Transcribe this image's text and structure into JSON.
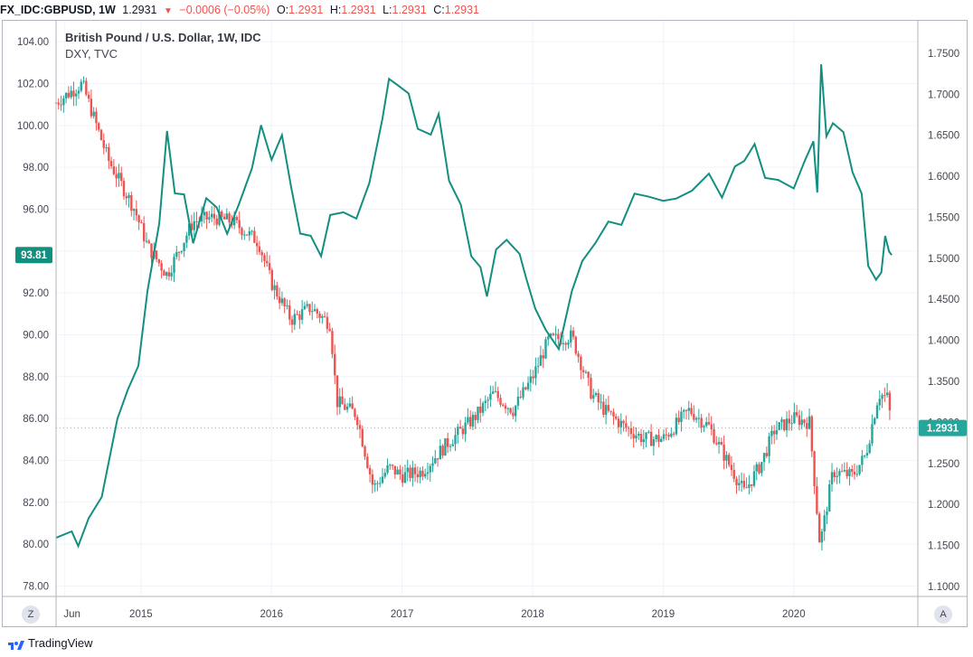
{
  "header": {
    "symbol": "FX_IDC:GBPUSD, 1W",
    "last": "1.2931",
    "change": "−0.0006 (−0.05%)",
    "open_label": "O:",
    "open": "1.2931",
    "high_label": "H:",
    "high": "1.2931",
    "low_label": "L:",
    "low": "1.2931",
    "close_label": "C:",
    "close": "1.2931"
  },
  "legend": {
    "main": "British Pound / U.S. Dollar, 1W, IDC",
    "compare": "DXY, TVC"
  },
  "footer": {
    "brand": "TradingView"
  },
  "controls": {
    "zoom_label": "Z",
    "auto_label": "A"
  },
  "colors": {
    "up": "#26a69a",
    "down": "#ef5350",
    "dxy": "#138f80",
    "grid": "#f0f3fa"
  },
  "chart_data": {
    "type": "candlestick + line",
    "x_tick_labels": [
      "Jun",
      "2015",
      "2016",
      "2017",
      "2018",
      "2019",
      "2020"
    ],
    "x_ticks_years": [
      2014.417,
      2015.0,
      2016.0,
      2017.0,
      2018.0,
      2019.0,
      2020.0
    ],
    "xlim": [
      2014.35,
      2020.95
    ],
    "left_axis": {
      "series": "DXY",
      "ticks": [
        "78.00",
        "80.00",
        "82.00",
        "84.00",
        "86.00",
        "88.00",
        "90.00",
        "92.00",
        "94.00",
        "96.00",
        "98.00",
        "100.00",
        "102.00",
        "104.00"
      ],
      "ylim": [
        77.5,
        105.0
      ],
      "last_label": "93.81",
      "last_value": 93.81
    },
    "right_axis": {
      "series": "GBPUSD",
      "ticks": [
        "1.1000",
        "1.1500",
        "1.2000",
        "1.2500",
        "1.3000",
        "1.3500",
        "1.4000",
        "1.4500",
        "1.5000",
        "1.5500",
        "1.6000",
        "1.6500",
        "1.7000",
        "1.7500"
      ],
      "ylim": [
        1.0878,
        1.7896
      ],
      "last_label": "1.2931",
      "last_value": 1.2931
    },
    "series": [
      {
        "name": "GBPUSD (1W candles, close anchors)",
        "axis": "right",
        "points": [
          [
            2014.35,
            1.69
          ],
          [
            2014.55,
            1.713
          ],
          [
            2014.75,
            1.62
          ],
          [
            2014.95,
            1.56
          ],
          [
            2015.05,
            1.515
          ],
          [
            2015.2,
            1.48
          ],
          [
            2015.4,
            1.545
          ],
          [
            2015.55,
            1.55
          ],
          [
            2015.7,
            1.545
          ],
          [
            2015.9,
            1.52
          ],
          [
            2016.0,
            1.47
          ],
          [
            2016.15,
            1.425
          ],
          [
            2016.3,
            1.44
          ],
          [
            2016.45,
            1.42
          ],
          [
            2016.5,
            1.325
          ],
          [
            2016.65,
            1.31
          ],
          [
            2016.78,
            1.22
          ],
          [
            2016.9,
            1.245
          ],
          [
            2017.0,
            1.235
          ],
          [
            2017.15,
            1.24
          ],
          [
            2017.35,
            1.275
          ],
          [
            2017.55,
            1.305
          ],
          [
            2017.7,
            1.335
          ],
          [
            2017.85,
            1.315
          ],
          [
            2018.0,
            1.355
          ],
          [
            2018.12,
            1.4
          ],
          [
            2018.3,
            1.405
          ],
          [
            2018.45,
            1.335
          ],
          [
            2018.55,
            1.315
          ],
          [
            2018.7,
            1.295
          ],
          [
            2018.85,
            1.28
          ],
          [
            2019.0,
            1.28
          ],
          [
            2019.2,
            1.315
          ],
          [
            2019.35,
            1.295
          ],
          [
            2019.5,
            1.25
          ],
          [
            2019.62,
            1.215
          ],
          [
            2019.75,
            1.25
          ],
          [
            2019.85,
            1.29
          ],
          [
            2020.0,
            1.305
          ],
          [
            2020.12,
            1.3
          ],
          [
            2020.2,
            1.15
          ],
          [
            2020.3,
            1.24
          ],
          [
            2020.45,
            1.235
          ],
          [
            2020.55,
            1.26
          ],
          [
            2020.65,
            1.335
          ],
          [
            2020.72,
            1.33
          ],
          [
            2020.75,
            1.2931
          ]
        ]
      },
      {
        "name": "DXY (line)",
        "axis": "left",
        "points": [
          [
            2014.35,
            80.3
          ],
          [
            2014.47,
            80.5
          ],
          [
            2014.52,
            80.1
          ],
          [
            2014.6,
            81.0
          ],
          [
            2014.7,
            82.5
          ],
          [
            2014.82,
            85.8
          ],
          [
            2014.9,
            87.5
          ],
          [
            2014.98,
            88.5
          ],
          [
            2015.05,
            92.0
          ],
          [
            2015.14,
            95.5
          ],
          [
            2015.2,
            99.5
          ],
          [
            2015.26,
            97.0
          ],
          [
            2015.33,
            96.5
          ],
          [
            2015.4,
            94.5
          ],
          [
            2015.5,
            96.5
          ],
          [
            2015.58,
            96.0
          ],
          [
            2015.66,
            95.0
          ],
          [
            2015.75,
            96.0
          ],
          [
            2015.85,
            98.2
          ],
          [
            2015.92,
            99.8
          ],
          [
            2016.0,
            98.5
          ],
          [
            2016.08,
            99.5
          ],
          [
            2016.15,
            97.0
          ],
          [
            2016.22,
            95.0
          ],
          [
            2016.3,
            94.5
          ],
          [
            2016.38,
            94.0
          ],
          [
            2016.45,
            95.5
          ],
          [
            2016.55,
            96.0
          ],
          [
            2016.65,
            95.5
          ],
          [
            2016.75,
            97.2
          ],
          [
            2016.85,
            100.5
          ],
          [
            2016.9,
            102.0
          ],
          [
            2016.96,
            102.2
          ],
          [
            2017.05,
            101.3
          ],
          [
            2017.12,
            100.0
          ],
          [
            2017.22,
            99.5
          ],
          [
            2017.28,
            100.5
          ],
          [
            2017.36,
            97.5
          ],
          [
            2017.45,
            96.0
          ],
          [
            2017.53,
            94.0
          ],
          [
            2017.6,
            93.0
          ],
          [
            2017.65,
            92.0
          ],
          [
            2017.72,
            94.0
          ],
          [
            2017.8,
            94.5
          ],
          [
            2017.9,
            94.0
          ],
          [
            2017.95,
            92.5
          ],
          [
            2018.02,
            91.5
          ],
          [
            2018.1,
            90.0
          ],
          [
            2018.2,
            89.5
          ],
          [
            2018.3,
            92.0
          ],
          [
            2018.38,
            93.5
          ],
          [
            2018.48,
            94.5
          ],
          [
            2018.58,
            95.2
          ],
          [
            2018.68,
            95.5
          ],
          [
            2018.78,
            96.5
          ],
          [
            2018.88,
            96.8
          ],
          [
            2019.0,
            96.3
          ],
          [
            2019.1,
            96.5
          ],
          [
            2019.22,
            97.0
          ],
          [
            2019.35,
            97.5
          ],
          [
            2019.45,
            96.8
          ],
          [
            2019.55,
            97.8
          ],
          [
            2019.62,
            98.5
          ],
          [
            2019.7,
            99.0
          ],
          [
            2019.78,
            97.5
          ],
          [
            2019.88,
            97.5
          ],
          [
            2020.0,
            96.8
          ],
          [
            2020.08,
            98.5
          ],
          [
            2020.15,
            99.0
          ],
          [
            2020.18,
            97.0
          ],
          [
            2020.21,
            102.8
          ],
          [
            2020.25,
            99.5
          ],
          [
            2020.3,
            100.2
          ],
          [
            2020.38,
            99.5
          ],
          [
            2020.45,
            98.0
          ],
          [
            2020.52,
            96.5
          ],
          [
            2020.57,
            93.5
          ],
          [
            2020.63,
            92.5
          ],
          [
            2020.67,
            93.0
          ],
          [
            2020.7,
            94.8
          ],
          [
            2020.73,
            93.8
          ],
          [
            2020.75,
            93.81
          ]
        ]
      }
    ]
  }
}
